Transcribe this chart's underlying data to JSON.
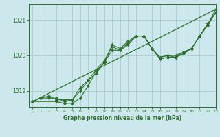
{
  "title": "Graphe pression niveau de la mer (hPa)",
  "bg_color": "#cce8ec",
  "grid_color": "#aacccc",
  "line_color": "#2d6e2d",
  "marker_color": "#2d6e2d",
  "xlim": [
    -0.5,
    23
  ],
  "ylim": [
    1018.55,
    1021.45
  ],
  "yticks": [
    1019,
    1020,
    1021
  ],
  "xticks": [
    0,
    1,
    2,
    3,
    4,
    5,
    6,
    7,
    8,
    9,
    10,
    11,
    12,
    13,
    14,
    15,
    16,
    17,
    18,
    19,
    20,
    21,
    22,
    23
  ],
  "series": [
    {
      "x": [
        0,
        1,
        2,
        3,
        4,
        5,
        6,
        7,
        8,
        9,
        10,
        11,
        12,
        13,
        14,
        15,
        16,
        17,
        18,
        19,
        20,
        21,
        22,
        23
      ],
      "y": [
        1018.7,
        1018.8,
        1018.8,
        1018.8,
        1018.7,
        1018.75,
        1019.1,
        1019.3,
        1019.6,
        1019.85,
        1020.25,
        1020.15,
        1020.3,
        1020.55,
        1020.55,
        1020.2,
        1019.95,
        1020.0,
        1020.0,
        1020.1,
        1020.2,
        1020.55,
        1020.9,
        1021.2
      ]
    },
    {
      "x": [
        0,
        1,
        2,
        3,
        4,
        5,
        6,
        7,
        8,
        9,
        10,
        11,
        12,
        13,
        14,
        15,
        16,
        17,
        18,
        19,
        20,
        21,
        22,
        23
      ],
      "y": [
        1018.7,
        1018.8,
        1018.85,
        1018.75,
        1018.75,
        1018.75,
        1019.0,
        1019.3,
        1019.5,
        1019.8,
        1020.3,
        1020.2,
        1020.4,
        1020.55,
        1020.55,
        1020.2,
        1019.95,
        1020.0,
        1019.95,
        1020.1,
        1020.2,
        1020.55,
        1020.85,
        1021.2
      ]
    },
    {
      "x": [
        0,
        3,
        4,
        5,
        6,
        7,
        8,
        9,
        10,
        11,
        12,
        13,
        14,
        15,
        16,
        17,
        18,
        19,
        20,
        21,
        22,
        23
      ],
      "y": [
        1018.7,
        1018.7,
        1018.65,
        1018.65,
        1018.8,
        1019.15,
        1019.55,
        1019.8,
        1020.15,
        1020.15,
        1020.35,
        1020.55,
        1020.55,
        1020.2,
        1019.9,
        1019.95,
        1019.95,
        1020.05,
        1020.2,
        1020.55,
        1020.85,
        1021.3
      ]
    },
    {
      "x": [
        0,
        23
      ],
      "y": [
        1018.7,
        1021.3
      ]
    }
  ]
}
